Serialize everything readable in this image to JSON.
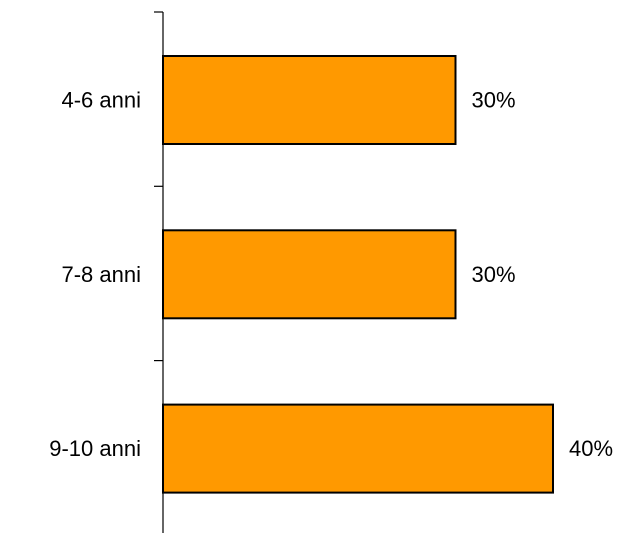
{
  "chart_data": {
    "type": "bar",
    "orientation": "horizontal",
    "categories": [
      "4-6 anni",
      "7-8 anni",
      "9-10 anni"
    ],
    "values": [
      30,
      30,
      40
    ],
    "data_labels": [
      "30%",
      "30%",
      "40%"
    ],
    "unit": "%",
    "xlim": [
      0,
      40
    ],
    "grid": false,
    "legend": "none",
    "bar_color": "#FF9900",
    "bar_edge_color": "#000000"
  }
}
